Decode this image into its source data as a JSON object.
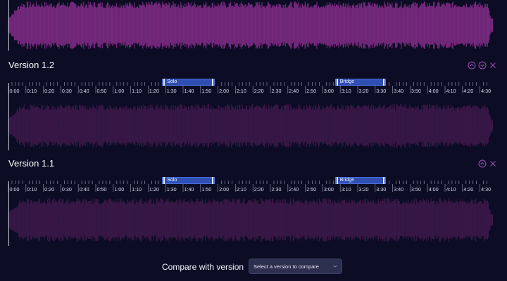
{
  "colors": {
    "background": "#0c0c24",
    "wave_primary": "#7a2a80",
    "wave_muted": "#3a1848",
    "region": "#2f4fb2",
    "accent_icons": "#a04fb8"
  },
  "versions": [
    {
      "title": "Version 1.2",
      "controls": [
        "chevron-up-icon",
        "chevron-down-icon",
        "close-icon"
      ],
      "ticks": [
        "0:00",
        "0:10",
        "0:20",
        "0:30",
        "0:40",
        "0:50",
        "1:00",
        "1:10",
        "1:20",
        "1:30",
        "1:40",
        "1:50",
        "2:00",
        "2:10",
        "2:20",
        "2:30",
        "2:40",
        "2:50",
        "3:00",
        "3:10",
        "3:20",
        "3:30",
        "3:40",
        "3:50",
        "4:00",
        "4:10",
        "4:20",
        "4:30"
      ],
      "regions": [
        {
          "label": "Solo",
          "start_s": 88,
          "end_s": 118
        },
        {
          "label": "Bridge",
          "start_s": 187,
          "end_s": 216
        }
      ]
    },
    {
      "title": "Version 1.1",
      "controls": [
        "chevron-up-icon",
        "close-icon"
      ],
      "ticks": [
        "0:00",
        "0:10",
        "0:20",
        "0:30",
        "0:40",
        "0:50",
        "1:00",
        "1:10",
        "1:20",
        "1:30",
        "1:40",
        "1:50",
        "2:00",
        "2:10",
        "2:20",
        "2:30",
        "2:40",
        "2:50",
        "3:00",
        "3:10",
        "3:20",
        "3:30",
        "3:40",
        "3:50",
        "4:00",
        "4:10",
        "4:20",
        "4:30"
      ],
      "regions": [
        {
          "label": "Solo",
          "start_s": 88,
          "end_s": 118
        },
        {
          "label": "Bridge",
          "start_s": 187,
          "end_s": 216
        }
      ]
    }
  ],
  "compare": {
    "label": "Compare with version",
    "placeholder": "Select a version to compare"
  }
}
